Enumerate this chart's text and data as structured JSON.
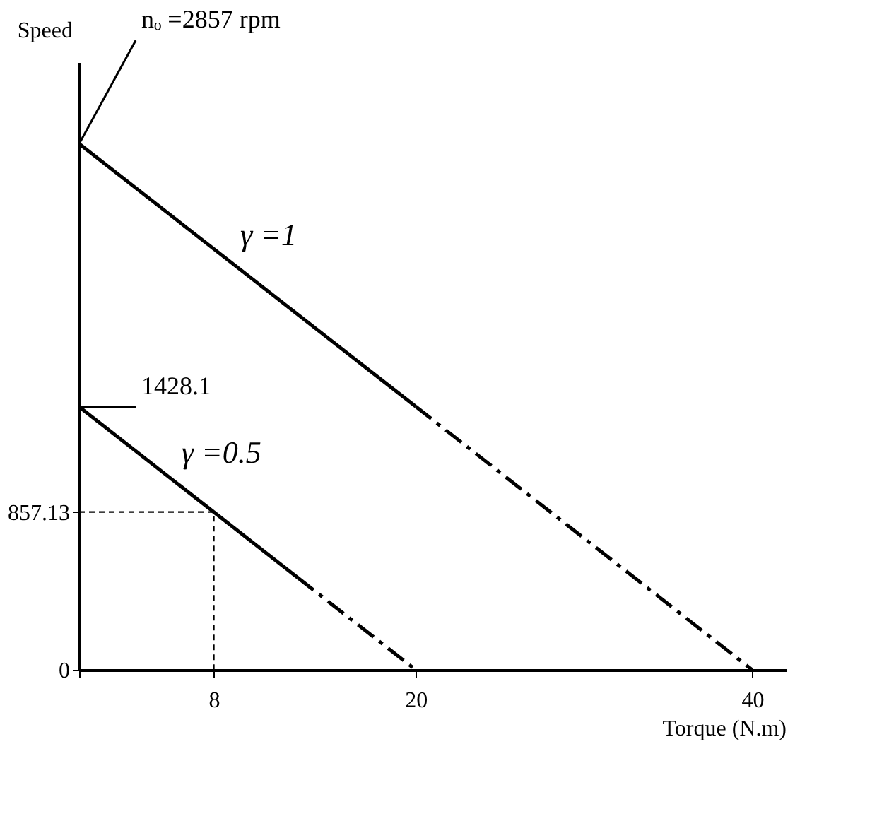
{
  "chart_data": {
    "type": "line",
    "xlabel": "Torque (N.m)",
    "ylabel": "Speed",
    "xlim": [
      0,
      42
    ],
    "ylim": [
      0,
      3300
    ],
    "xticks": [
      {
        "value": 0,
        "label": null
      },
      8,
      20,
      40
    ],
    "yticks": [
      0,
      857.13
    ],
    "grid": false,
    "marker": "none",
    "series": [
      {
        "name": "γ =1",
        "color": "#000000",
        "line_style": "solid",
        "x": [
          0,
          20
        ],
        "values": [
          2857,
          1430
        ]
      },
      {
        "color": "#000000",
        "line_style": "dashed",
        "x": [
          20,
          40
        ],
        "values": [
          1430,
          0
        ]
      },
      {
        "name": "γ =0.5",
        "color": "#000000",
        "line_style": "solid",
        "x": [
          0,
          13
        ],
        "values": [
          1428.1,
          500
        ]
      },
      {
        "color": "#000000",
        "line_style": "dashed",
        "x": [
          13,
          20
        ],
        "values": [
          500,
          0
        ]
      },
      {
        "color": "#000000",
        "line_style": "dotted",
        "x": [
          0,
          8,
          8
        ],
        "values": [
          857.13,
          857.13,
          0
        ]
      }
    ],
    "annotations": [
      {
        "text": "nₒ =2857 rpm",
        "x": 0,
        "y": 2857
      },
      {
        "text": "1428.1",
        "x": 0,
        "y": 1428.1
      }
    ]
  }
}
